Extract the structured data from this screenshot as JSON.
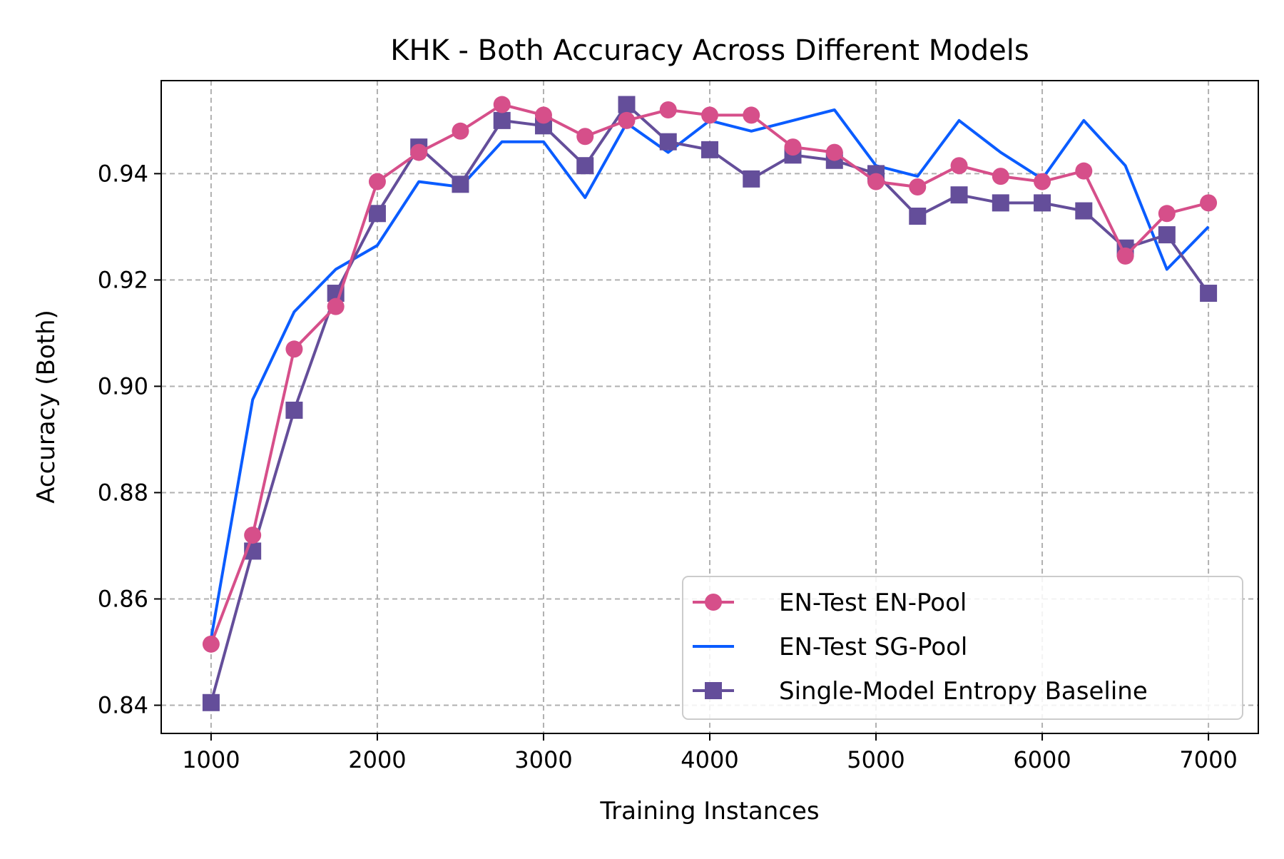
{
  "chart_data": {
    "type": "line",
    "title": "KHK - Both Accuracy Across Different Models",
    "xlabel": "Training Instances",
    "ylabel": "Accuracy (Both)",
    "xlim": [
      700,
      7300
    ],
    "ylim": [
      0.8347,
      0.9575
    ],
    "xticks": [
      1000,
      2000,
      3000,
      4000,
      5000,
      6000,
      7000
    ],
    "yticks": [
      0.84,
      0.86,
      0.88,
      0.9,
      0.92,
      0.94
    ],
    "xtick_labels": [
      "1000",
      "2000",
      "3000",
      "4000",
      "5000",
      "6000",
      "7000"
    ],
    "ytick_labels": [
      "0.84",
      "0.86",
      "0.88",
      "0.90",
      "0.92",
      "0.94"
    ],
    "grid": true,
    "legend_position": "lower-right",
    "x": [
      1000,
      1250,
      1500,
      1750,
      2000,
      2250,
      2500,
      2750,
      3000,
      3250,
      3500,
      3750,
      4000,
      4250,
      4500,
      4750,
      5000,
      5250,
      5500,
      5750,
      6000,
      6250,
      6500,
      6750,
      7000
    ],
    "series": [
      {
        "name": "EN-Test EN-Pool",
        "color": "#d64f8a",
        "marker": "circle",
        "values": [
          0.8515,
          0.872,
          0.907,
          0.915,
          0.9385,
          0.944,
          0.948,
          0.953,
          0.951,
          0.947,
          0.95,
          0.952,
          0.951,
          0.951,
          0.945,
          0.944,
          0.9385,
          0.9375,
          0.9415,
          0.9395,
          0.9385,
          0.9405,
          0.9245,
          0.9325,
          0.9345
        ]
      },
      {
        "name": "EN-Test SG-Pool",
        "color": "#0a5cff",
        "marker": "none",
        "values": [
          0.8525,
          0.8975,
          0.914,
          0.922,
          0.9265,
          0.9385,
          0.9375,
          0.946,
          0.946,
          0.9355,
          0.9495,
          0.944,
          0.95,
          0.948,
          0.95,
          0.952,
          0.9415,
          0.9395,
          0.95,
          0.944,
          0.939,
          0.95,
          0.9415,
          0.922,
          0.93
        ]
      },
      {
        "name": "Single-Model Entropy Baseline",
        "color": "#644e9a",
        "marker": "square",
        "values": [
          0.8405,
          0.869,
          0.8955,
          0.9175,
          0.9325,
          0.945,
          0.938,
          0.95,
          0.949,
          0.9415,
          0.953,
          0.946,
          0.9445,
          0.939,
          0.9435,
          0.9425,
          0.94,
          0.932,
          0.936,
          0.9345,
          0.9345,
          0.933,
          0.926,
          0.9285,
          0.9175
        ]
      }
    ]
  }
}
